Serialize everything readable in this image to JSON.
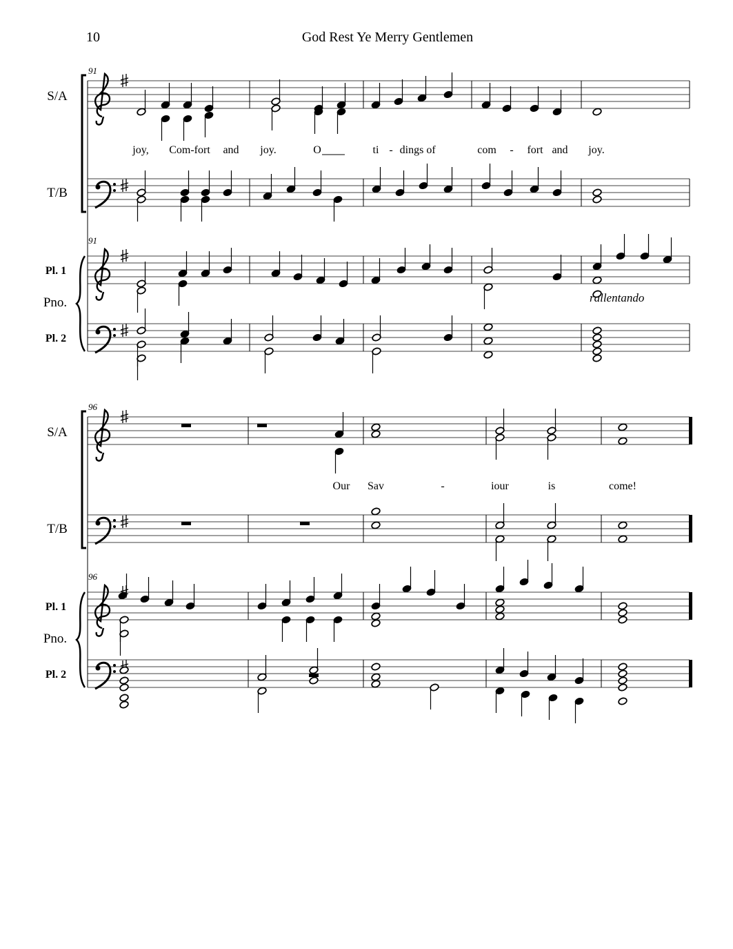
{
  "header": {
    "page_number": "10",
    "title": "God Rest Ye Merry Gentlemen"
  },
  "systems": [
    {
      "measure_number": "91",
      "measure_number_piano": "91",
      "staff_labels": {
        "choir_upper": "S/A",
        "choir_lower": "T/B",
        "piano_upper": "Pl. 1",
        "piano": "Pno.",
        "piano_lower": "Pl. 2"
      },
      "lyrics": [
        "joy,",
        "Com-fort",
        "and",
        "joy.",
        "O",
        "ti",
        "-",
        "dings",
        "of",
        "com",
        "-",
        "fort",
        "and",
        "joy."
      ],
      "expression": "rallentando"
    },
    {
      "measure_number": "96",
      "measure_number_piano": "96",
      "staff_labels": {
        "choir_upper": "S/A",
        "choir_lower": "T/B",
        "piano_upper": "Pl. 1",
        "piano": "Pno.",
        "piano_lower": "Pl. 2"
      },
      "lyrics": [
        "Our",
        "Sav",
        "-",
        "iour",
        "is",
        "come!"
      ]
    }
  ]
}
